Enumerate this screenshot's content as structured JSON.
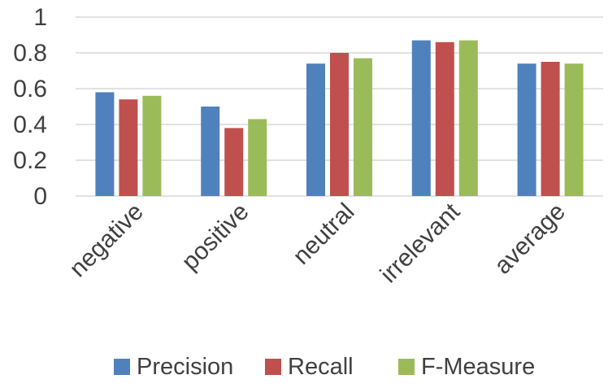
{
  "chart_data": {
    "type": "bar",
    "categories": [
      "negative",
      "positive",
      "neutral",
      "irrelevant",
      "average"
    ],
    "series": [
      {
        "name": "Precision",
        "color": "#4f81bd",
        "values": [
          0.58,
          0.5,
          0.74,
          0.87,
          0.74
        ]
      },
      {
        "name": "Recall",
        "color": "#c0504d",
        "values": [
          0.54,
          0.38,
          0.8,
          0.86,
          0.75
        ]
      },
      {
        "name": "F-Measure",
        "color": "#9bbb59",
        "values": [
          0.56,
          0.43,
          0.77,
          0.87,
          0.74
        ]
      }
    ],
    "yticks": [
      "0",
      "0.2",
      "0.4",
      "0.6",
      "0.8",
      "1"
    ],
    "ylim": [
      0,
      1
    ],
    "grid": true,
    "legend_position": "bottom"
  }
}
